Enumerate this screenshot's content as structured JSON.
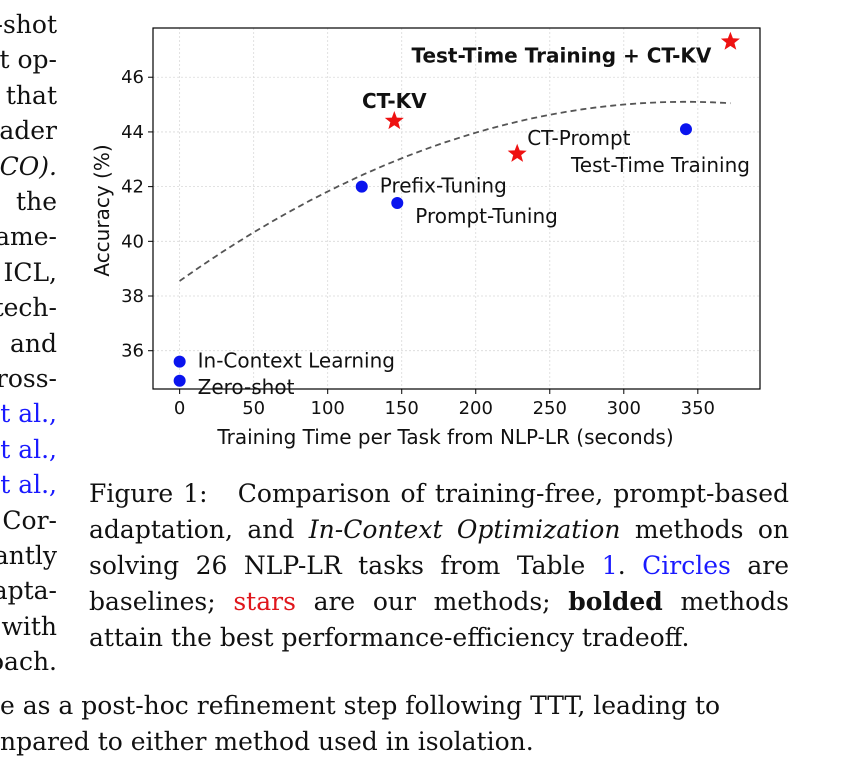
{
  "left_text": {
    "lines": [
      "-shot",
      "t op-",
      "that",
      "ader",
      "CO).",
      "the",
      "ame-",
      "ICL,",
      "tech-",
      "and",
      "ross-",
      "t al.,",
      "t al.,",
      "t al.,",
      "Cor-",
      "antly",
      "apta-",
      "with",
      "oach."
    ]
  },
  "chart_data": {
    "type": "scatter",
    "xlabel": "Training Time per Task from NLP-LR (seconds)",
    "ylabel": "Accuracy (%)",
    "xlim": [
      -18,
      392
    ],
    "ylim": [
      34.6,
      47.8
    ],
    "xticks": [
      0,
      50,
      100,
      150,
      200,
      250,
      300,
      350
    ],
    "yticks": [
      36,
      38,
      40,
      42,
      44,
      46
    ],
    "grid": true,
    "points": [
      {
        "label": "Zero-shot",
        "x": 0,
        "y": 34.9,
        "marker": "circle",
        "color": "#0a14ee",
        "bold": false
      },
      {
        "label": "In-Context Learning",
        "x": 0,
        "y": 35.6,
        "marker": "circle",
        "color": "#0a14ee",
        "bold": false
      },
      {
        "label": "Prefix-Tuning",
        "x": 123,
        "y": 42.0,
        "marker": "circle",
        "color": "#0a14ee",
        "bold": false
      },
      {
        "label": "Prompt-Tuning",
        "x": 147,
        "y": 41.4,
        "marker": "circle",
        "color": "#0a14ee",
        "bold": false
      },
      {
        "label": "Test-Time Training",
        "x": 342,
        "y": 44.1,
        "marker": "circle",
        "color": "#0a14ee",
        "bold": false
      },
      {
        "label": "CT-KV",
        "x": 145,
        "y": 44.4,
        "marker": "star",
        "color": "#ee1111",
        "bold": true
      },
      {
        "label": "CT-Prompt",
        "x": 228,
        "y": 43.2,
        "marker": "star",
        "color": "#ee1111",
        "bold": false
      },
      {
        "label": "Test-Time Training + CT-KV",
        "x": 372,
        "y": 47.3,
        "marker": "star",
        "color": "#ee1111",
        "bold": true
      }
    ],
    "trend_curve": {
      "style": "dashed",
      "color": "#555555",
      "x_range": [
        0,
        372
      ],
      "peak_x": 342,
      "y_at_start": 38.55,
      "y_at_peak": 45.1
    }
  },
  "caption": {
    "label": "Figure 1:",
    "p1": "Comparison of training-free, prompt-based adaptation, and",
    "p1_italic": "In-Context Optimization",
    "p2": "methods on solving 26 NLP-LR tasks from Table",
    "table_ref": "1",
    "p3": ".",
    "circles": "Circles",
    "p4": "are baselines;",
    "stars": "stars",
    "p5": "are our methods;",
    "bolded": "bolded",
    "p6": "methods attain the best performance-efficiency tradeoff."
  },
  "bottom_text": {
    "line1": "e as a post-hoc refinement step following TTT, leading to",
    "line2": "npared to either method used in isolation."
  }
}
